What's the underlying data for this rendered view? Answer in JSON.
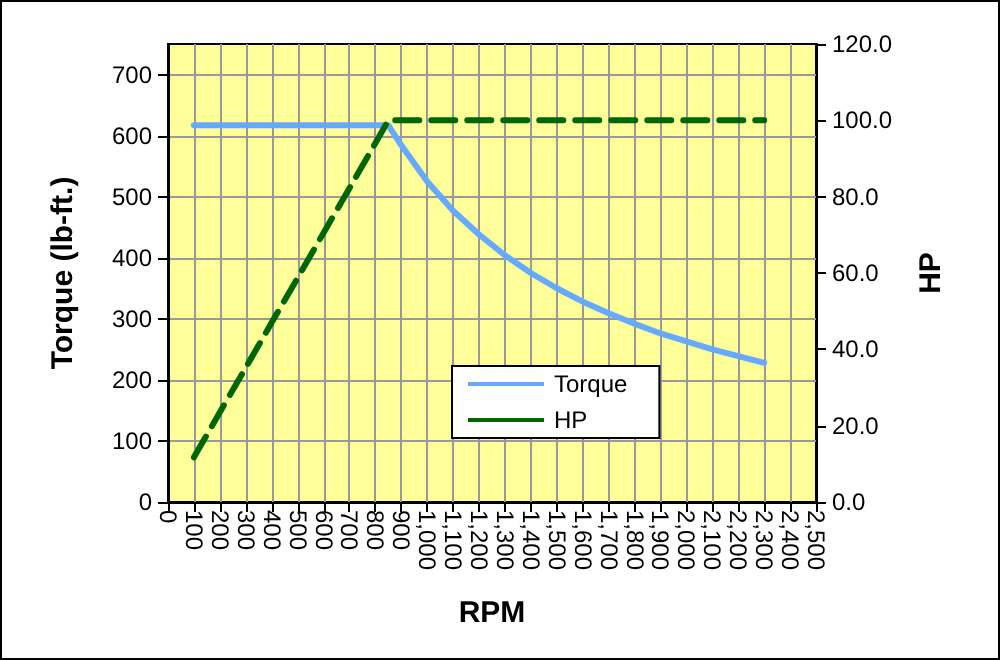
{
  "chart_data": {
    "type": "line",
    "xlabel": "RPM",
    "ylabel": "Torque (lb-ft.)",
    "y2label": "HP",
    "xlim": [
      0,
      2500
    ],
    "xticks": [
      0,
      100,
      200,
      300,
      400,
      500,
      600,
      700,
      800,
      900,
      {
        "value": 1000,
        "label": "1,000"
      },
      {
        "value": 1100,
        "label": "1,100"
      },
      {
        "value": 1200,
        "label": "1,200"
      },
      {
        "value": 1300,
        "label": "1,300"
      },
      {
        "value": 1400,
        "label": "1,400"
      },
      {
        "value": 1500,
        "label": "1,500"
      },
      {
        "value": 1600,
        "label": "1,600"
      },
      {
        "value": 1700,
        "label": "1,700"
      },
      {
        "value": 1800,
        "label": "1,800"
      },
      {
        "value": 1900,
        "label": "1,900"
      },
      {
        "value": 2000,
        "label": "2,000"
      },
      {
        "value": 2100,
        "label": "2,100"
      },
      {
        "value": 2200,
        "label": "2,200"
      },
      {
        "value": 2300,
        "label": "2,300"
      },
      {
        "value": 2400,
        "label": "2,400"
      },
      {
        "value": 2500,
        "label": "2,500"
      }
    ],
    "ylim": [
      0,
      750
    ],
    "yticks": [
      0,
      100,
      200,
      300,
      400,
      500,
      600,
      700
    ],
    "y2lim": [
      0,
      120
    ],
    "y2ticks": [
      {
        "value": 0,
        "label": "0.0"
      },
      {
        "value": 20,
        "label": "20.0"
      },
      {
        "value": 40,
        "label": "40.0"
      },
      {
        "value": 60,
        "label": "60.0"
      },
      {
        "value": 80,
        "label": "80.0"
      },
      {
        "value": 100,
        "label": "100.0"
      },
      {
        "value": 120,
        "label": "120.0"
      }
    ],
    "grid": true,
    "legend": "bottom right",
    "marker": "none",
    "series": [
      {
        "name": "Torque",
        "color": "#66aaff",
        "line_style": "solid",
        "x": [
          100,
          200,
          300,
          400,
          500,
          600,
          700,
          800,
          850,
          900,
          1000,
          1100,
          1200,
          1300,
          1400,
          1500,
          1600,
          1700,
          1800,
          1900,
          2000,
          2100,
          2200,
          2300
        ],
        "values": [
          617,
          617,
          617,
          617,
          617,
          617,
          617,
          617,
          617,
          584,
          525,
          477,
          438,
          404,
          375,
          350,
          328,
          309,
          292,
          276,
          263,
          250,
          239,
          228
        ]
      },
      {
        "name": "HP",
        "color": "#006600",
        "line_style": "dashed",
        "axis": "y2",
        "x": [
          100,
          200,
          300,
          400,
          500,
          600,
          700,
          800,
          850,
          900,
          1000,
          1100,
          1200,
          1300,
          1400,
          1500,
          1600,
          1700,
          1800,
          1900,
          2000,
          2100,
          2200,
          2300
        ],
        "values": [
          11.7,
          23.5,
          35.2,
          47,
          58.7,
          70.5,
          82.2,
          94,
          100,
          100,
          100,
          100,
          100,
          100,
          100,
          100,
          100,
          100,
          100,
          100,
          100,
          100,
          100,
          100
        ]
      }
    ]
  }
}
